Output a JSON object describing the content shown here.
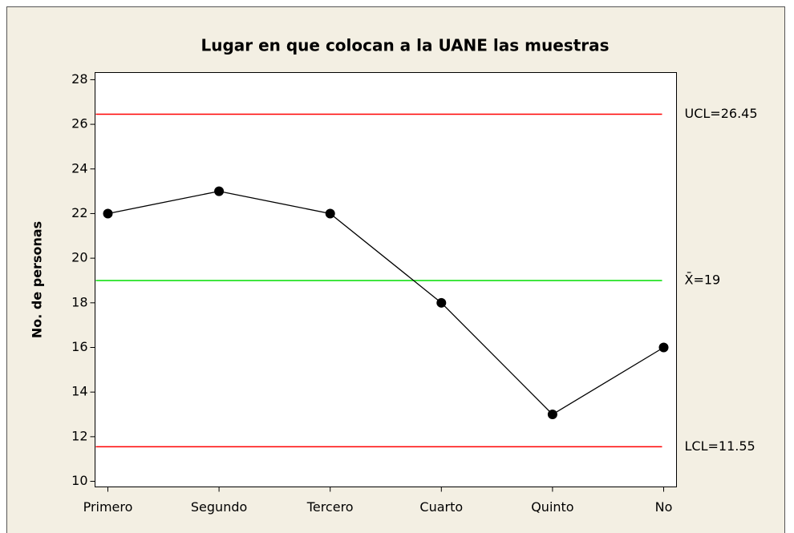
{
  "chart_data": {
    "type": "line",
    "title": "Lugar en que colocan a la UANE las muestras",
    "y_label": "No. de personas",
    "categories": [
      "Primero",
      "Segundo",
      "Tercero",
      "Cuarto",
      "Quinto",
      "No"
    ],
    "series": [
      {
        "name": "No. de personas",
        "color": "#000000",
        "values": [
          22,
          23,
          22,
          18,
          13,
          16
        ]
      }
    ],
    "control_lines": [
      {
        "value": 26.45,
        "label": "UCL=26.45",
        "color": "#ff0000"
      },
      {
        "value": 19,
        "label": "X̄=19",
        "color": "#00dd00"
      },
      {
        "value": 11.55,
        "label": "LCL=11.55",
        "color": "#ff0000"
      }
    ],
    "ylim": [
      9.75,
      28.32
    ],
    "yticks": [
      10,
      12,
      14,
      16,
      18,
      20,
      22,
      24,
      26,
      28
    ]
  }
}
